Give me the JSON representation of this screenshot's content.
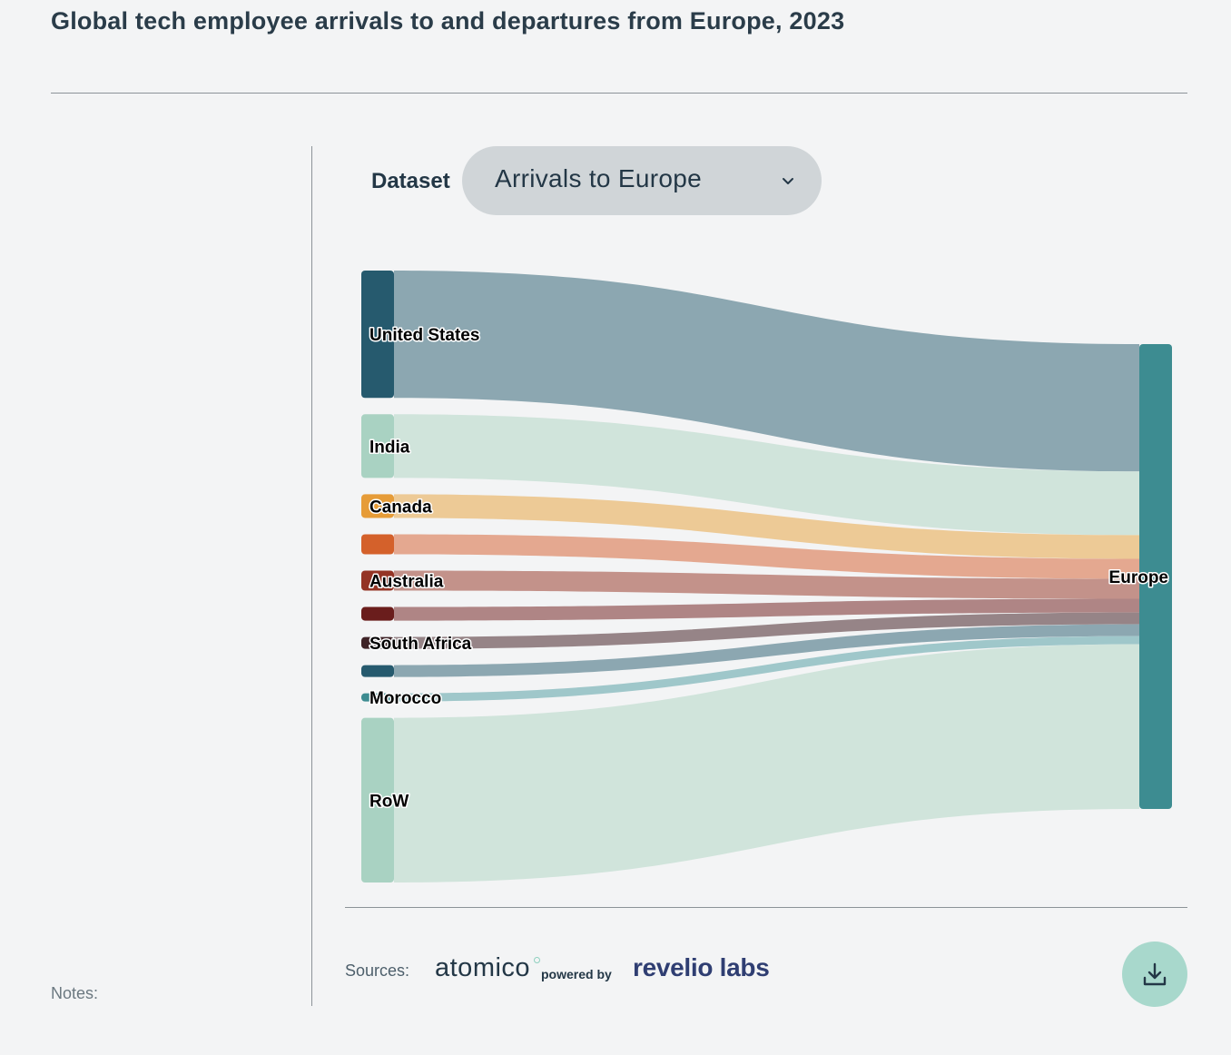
{
  "title": "Global tech employee arrivals to and departures from Europe, 2023",
  "controls": {
    "dataset_label": "Dataset",
    "dataset_value": "Arrivals to Europe",
    "chevron_icon": "chevron-down-icon"
  },
  "footer": {
    "sources_label": "Sources:",
    "atomico": "atomico",
    "powered_by": "powered by",
    "revelio": "revelio labs",
    "notes_label": "Notes:",
    "download_icon": "download-icon"
  },
  "chart_data": {
    "type": "sankey",
    "target": "Europe",
    "target_color": "#3d8c91",
    "nodes": [
      {
        "name": "United States",
        "label": "United States",
        "value": 140,
        "color": "#265a6e",
        "link_color": "#8ca7b1"
      },
      {
        "name": "India",
        "label": "India",
        "value": 70,
        "color": "#a9d2c2",
        "link_color": "#d0e4db"
      },
      {
        "name": "Canada",
        "label": "Canada",
        "value": 26,
        "color": "#e69c38",
        "link_color": "#edca96"
      },
      {
        "name": "",
        "label": "",
        "value": 22,
        "color": "#d4612b",
        "link_color": "#e4a890"
      },
      {
        "name": "Australia",
        "label": "Australia",
        "value": 22,
        "color": "#943425",
        "link_color": "#c3928a"
      },
      {
        "name": "",
        "label": "",
        "value": 15,
        "color": "#6a1d1c",
        "link_color": "#af8585"
      },
      {
        "name": "South Africa",
        "label": "South Africa",
        "value": 13,
        "color": "#3f2327",
        "link_color": "#968487"
      },
      {
        "name": "",
        "label": "",
        "value": 13,
        "color": "#265a6e",
        "link_color": "#8ca7b1"
      },
      {
        "name": "Morocco",
        "label": "Morocco",
        "value": 9,
        "color": "#3d8c91",
        "link_color": "#9fc7ca"
      },
      {
        "name": "RoW",
        "label": "RoW",
        "value": 181,
        "color": "#a9d2c2",
        "link_color": "#d0e4db"
      }
    ]
  }
}
